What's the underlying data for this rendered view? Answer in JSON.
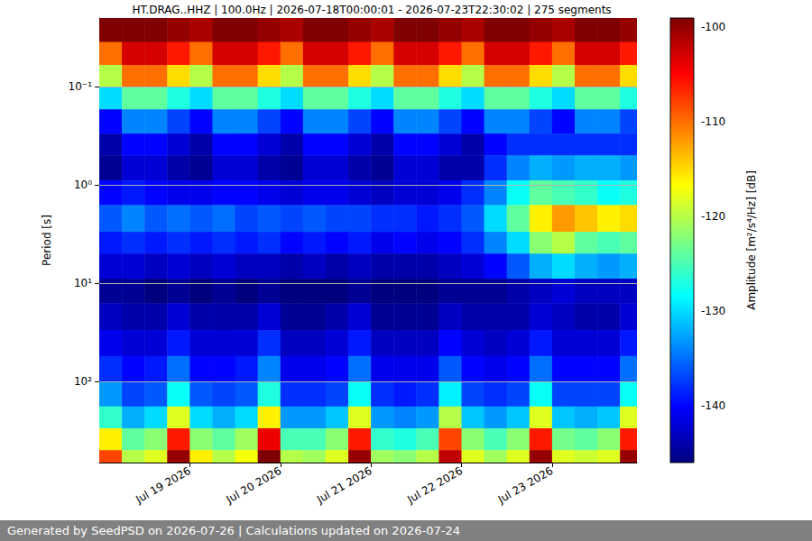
{
  "chart_data": {
    "type": "heatmap",
    "title": "HT.DRAG..HHZ | 100.0Hz | 2026-07-18T00:00:01 - 2026-07-23T22:30:02 | 275 segments",
    "y_label": "Period [s]",
    "footer": "Generated by SeedPSD on 2026-07-26 | Calculations updated on 2026-07-24",
    "log": "y",
    "grid": "y",
    "xlim": [
      "2026-07-18T00:00:01",
      "2026-07-23T22:30:02"
    ],
    "xticks": [
      {
        "value": "2026-07-19T00:00:00",
        "label": "Jul 19 2026"
      },
      {
        "value": "2026-07-20T00:00:00",
        "label": "Jul 20 2026"
      },
      {
        "value": "2026-07-21T00:00:00",
        "label": "Jul 21 2026"
      },
      {
        "value": "2026-07-22T00:00:00",
        "label": "Jul 22 2026"
      },
      {
        "value": "2026-07-23T00:00:00",
        "label": "Jul 23 2026"
      }
    ],
    "ylim": [
      0.02,
      670
    ],
    "yticks": [
      {
        "value": 0.1,
        "label": "10⁻¹"
      },
      {
        "value": 1,
        "label": "10⁰"
      },
      {
        "value": 10,
        "label": "10¹"
      },
      {
        "value": 100,
        "label": "10²"
      }
    ],
    "x_edges": [
      "2026-07-18T00:00:01",
      "2026-07-18T06:00:00",
      "2026-07-18T12:00:00",
      "2026-07-18T18:00:00",
      "2026-07-19T00:00:00",
      "2026-07-19T06:00:00",
      "2026-07-19T12:00:00",
      "2026-07-19T18:00:00",
      "2026-07-20T00:00:00",
      "2026-07-20T06:00:00",
      "2026-07-20T12:00:00",
      "2026-07-20T18:00:00",
      "2026-07-21T00:00:00",
      "2026-07-21T06:00:00",
      "2026-07-21T12:00:00",
      "2026-07-21T18:00:00",
      "2026-07-22T00:00:00",
      "2026-07-22T06:00:00",
      "2026-07-22T12:00:00",
      "2026-07-22T18:00:00",
      "2026-07-23T00:00:00",
      "2026-07-23T06:00:00",
      "2026-07-23T12:00:00",
      "2026-07-23T18:00:00",
      "2026-07-23T22:30:02"
    ],
    "y_edges": [
      0.02,
      0.035,
      0.06,
      0.1,
      0.17,
      0.3,
      0.5,
      0.9,
      1.6,
      3,
      5,
      9,
      16,
      30,
      55,
      100,
      180,
      300,
      500,
      670
    ],
    "cells": [
      [
        -99,
        -99,
        -99,
        -100,
        -101,
        -99,
        -99,
        -100,
        -101,
        -99,
        -99,
        -100,
        -101,
        -99,
        -99,
        -100,
        -101,
        -99,
        -99,
        -100,
        -101,
        -99,
        -99,
        -100
      ],
      [
        -110,
        -103,
        -103,
        -106,
        -110,
        -103,
        -103,
        -106,
        -110,
        -103,
        -103,
        -106,
        -110,
        -103,
        -103,
        -106,
        -110,
        -103,
        -103,
        -106,
        -110,
        -103,
        -103,
        -106
      ],
      [
        -120,
        -110,
        -110,
        -115,
        -120,
        -110,
        -110,
        -115,
        -120,
        -110,
        -110,
        -115,
        -120,
        -110,
        -110,
        -115,
        -120,
        -110,
        -110,
        -115,
        -120,
        -110,
        -110,
        -115
      ],
      [
        -130,
        -124,
        -124,
        -127,
        -130,
        -124,
        -124,
        -127,
        -130,
        -124,
        -124,
        -127,
        -130,
        -124,
        -124,
        -127,
        -130,
        -124,
        -124,
        -127,
        -130,
        -124,
        -124,
        -127
      ],
      [
        -140,
        -134,
        -134,
        -137,
        -140,
        -134,
        -134,
        -137,
        -140,
        -134,
        -134,
        -137,
        -140,
        -134,
        -134,
        -137,
        -140,
        -134,
        -134,
        -137,
        -140,
        -134,
        -134,
        -137
      ],
      [
        -144,
        -140,
        -140,
        -142,
        -144,
        -140,
        -140,
        -142,
        -144,
        -140,
        -140,
        -142,
        -144,
        -140,
        -140,
        -142,
        -144,
        -140,
        -138,
        -138,
        -138,
        -138,
        -138,
        -138
      ],
      [
        -145,
        -142,
        -142,
        -144,
        -145,
        -142,
        -142,
        -144,
        -145,
        -142,
        -142,
        -144,
        -145,
        -142,
        -142,
        -144,
        -144,
        -138,
        -134,
        -132,
        -133,
        -132,
        -132,
        -133
      ],
      [
        -140,
        -139,
        -140,
        -141,
        -141,
        -140,
        -140,
        -141,
        -142,
        -141,
        -141,
        -142,
        -143,
        -142,
        -142,
        -141,
        -138,
        -134,
        -128,
        -124,
        -125,
        -126,
        -128,
        -127
      ],
      [
        -136,
        -134,
        -136,
        -135,
        -136,
        -135,
        -137,
        -136,
        -137,
        -136,
        -137,
        -137,
        -138,
        -138,
        -139,
        -138,
        -136,
        -130,
        -124,
        -116,
        -112,
        -114,
        -116,
        -115
      ],
      [
        -139,
        -138,
        -139,
        -138,
        -139,
        -138,
        -139,
        -138,
        -140,
        -139,
        -140,
        -139,
        -141,
        -140,
        -141,
        -140,
        -138,
        -134,
        -130,
        -122,
        -120,
        -124,
        -125,
        -124
      ],
      [
        -142,
        -142,
        -143,
        -142,
        -143,
        -142,
        -143,
        -143,
        -144,
        -143,
        -144,
        -143,
        -144,
        -144,
        -144,
        -143,
        -142,
        -140,
        -136,
        -132,
        -130,
        -132,
        -133,
        -132
      ],
      [
        -145,
        -145,
        -146,
        -145,
        -146,
        -145,
        -146,
        -145,
        -146,
        -146,
        -146,
        -145,
        -146,
        -146,
        -146,
        -145,
        -145,
        -145,
        -144,
        -143,
        -142,
        -143,
        -143,
        -143
      ],
      [
        -143,
        -144,
        -144,
        -142,
        -144,
        -144,
        -144,
        -142,
        -145,
        -145,
        -144,
        -142,
        -145,
        -145,
        -145,
        -143,
        -144,
        -144,
        -144,
        -142,
        -143,
        -144,
        -144,
        -142
      ],
      [
        -141,
        -142,
        -142,
        -139,
        -142,
        -142,
        -142,
        -138,
        -143,
        -143,
        -142,
        -139,
        -143,
        -143,
        -143,
        -140,
        -142,
        -143,
        -142,
        -139,
        -142,
        -142,
        -142,
        -139
      ],
      [
        -138,
        -140,
        -139,
        -135,
        -140,
        -140,
        -139,
        -134,
        -141,
        -141,
        -140,
        -135,
        -141,
        -141,
        -141,
        -136,
        -140,
        -141,
        -140,
        -135,
        -140,
        -140,
        -140,
        -135
      ],
      [
        -133,
        -137,
        -136,
        -128,
        -136,
        -137,
        -136,
        -127,
        -138,
        -138,
        -137,
        -128,
        -138,
        -139,
        -138,
        -129,
        -137,
        -138,
        -137,
        -128,
        -137,
        -137,
        -137,
        -128
      ],
      [
        -126,
        -132,
        -130,
        -118,
        -130,
        -132,
        -130,
        -116,
        -133,
        -133,
        -131,
        -118,
        -133,
        -134,
        -133,
        -120,
        -131,
        -133,
        -131,
        -118,
        -131,
        -132,
        -131,
        -118
      ],
      [
        -116,
        -124,
        -122,
        -106,
        -122,
        -124,
        -121,
        -104,
        -125,
        -125,
        -122,
        -106,
        -126,
        -127,
        -125,
        -108,
        -122,
        -125,
        -122,
        -106,
        -123,
        -124,
        -122,
        -106
      ],
      [
        -108,
        -120,
        -118,
        -100,
        -116,
        -120,
        -117,
        -99,
        -120,
        -121,
        -118,
        -100,
        -121,
        -122,
        -120,
        -102,
        -118,
        -121,
        -118,
        -100,
        -118,
        -119,
        -118,
        -100
      ]
    ],
    "colorbar": {
      "label": "Amplitude [m²/s⁴/Hz] [dB]",
      "range": [
        -146,
        -99
      ],
      "ticks": [
        -100,
        -110,
        -120,
        -130,
        -140
      ]
    }
  }
}
